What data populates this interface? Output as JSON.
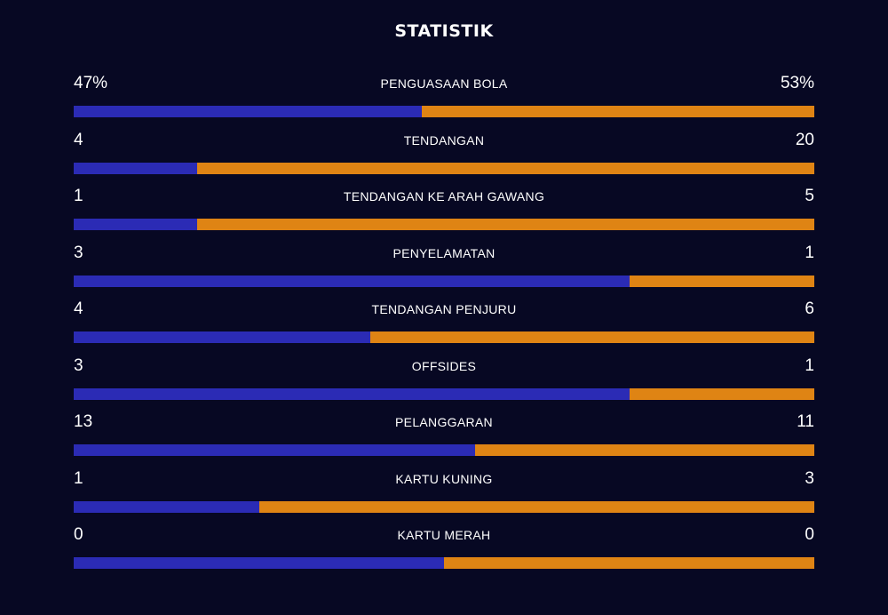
{
  "title": "STATISTIK",
  "colors": {
    "background": "#070823",
    "home_bar": "#2b2bb5",
    "away_bar": "#df8414",
    "text": "#ffffff"
  },
  "stats": [
    {
      "label": "PENGUASAAN BOLA",
      "left_text": "47%",
      "right_text": "53%",
      "left_value": 47,
      "right_value": 53
    },
    {
      "label": "TENDANGAN",
      "left_text": "4",
      "right_text": "20",
      "left_value": 4,
      "right_value": 20
    },
    {
      "label": "TENDANGAN KE ARAH GAWANG",
      "left_text": "1",
      "right_text": "5",
      "left_value": 1,
      "right_value": 5
    },
    {
      "label": "PENYELAMATAN",
      "left_text": "3",
      "right_text": "1",
      "left_value": 3,
      "right_value": 1
    },
    {
      "label": "TENDANGAN PENJURU",
      "left_text": "4",
      "right_text": "6",
      "left_value": 4,
      "right_value": 6
    },
    {
      "label": "OFFSIDES",
      "left_text": "3",
      "right_text": "1",
      "left_value": 3,
      "right_value": 1
    },
    {
      "label": "PELANGGARAN",
      "left_text": "13",
      "right_text": "11",
      "left_value": 13,
      "right_value": 11
    },
    {
      "label": "KARTU KUNING",
      "left_text": "1",
      "right_text": "3",
      "left_value": 1,
      "right_value": 3
    },
    {
      "label": "KARTU MERAH",
      "left_text": "0",
      "right_text": "0",
      "left_value": 0,
      "right_value": 0
    }
  ]
}
